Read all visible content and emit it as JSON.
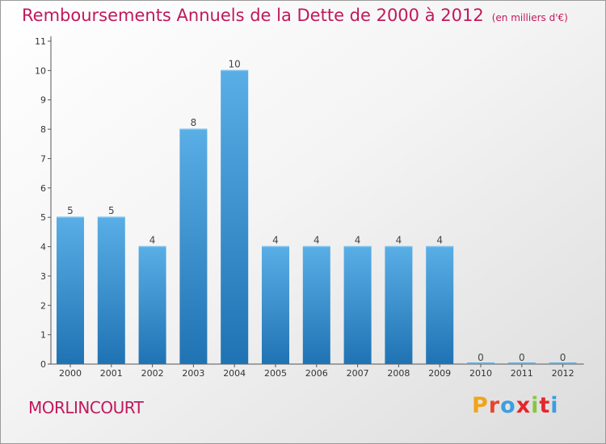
{
  "header": {
    "title": "Remboursements Annuels de la Dette de 2000 à 2012",
    "unit": "(en milliers d'€)"
  },
  "footer": {
    "commune": "MORLINCOURT",
    "logo": "Proxiti"
  },
  "colors": {
    "title": "#c2185b",
    "bar_top": "#5aaee6",
    "bar_bottom": "#1f73b3",
    "logo_letters": [
      "#f0a418",
      "#e8472e",
      "#3b9ee0",
      "#e6262b",
      "#8bc43f",
      "#e6262b",
      "#3b9ee0"
    ]
  },
  "chart_data": {
    "type": "bar",
    "title": "Remboursements Annuels de la Dette de 2000 à 2012",
    "subtitle": "(en milliers d'€)",
    "categories": [
      "2000",
      "2001",
      "2002",
      "2003",
      "2004",
      "2005",
      "2006",
      "2007",
      "2008",
      "2009",
      "2010",
      "2011",
      "2012"
    ],
    "values": [
      5,
      5,
      4,
      8,
      10,
      4,
      4,
      4,
      4,
      4,
      0,
      0,
      0
    ],
    "value_labels": [
      "5",
      "5",
      "4",
      "8",
      "10",
      "4",
      "4",
      "4",
      "4",
      "4",
      "0",
      "0",
      "0"
    ],
    "y_ticks": [
      "0",
      "1",
      "2",
      "3",
      "4",
      "5",
      "6",
      "7",
      "8",
      "9",
      "10",
      "11"
    ],
    "ylim": [
      0,
      11
    ],
    "grid": false,
    "legend": "none"
  }
}
